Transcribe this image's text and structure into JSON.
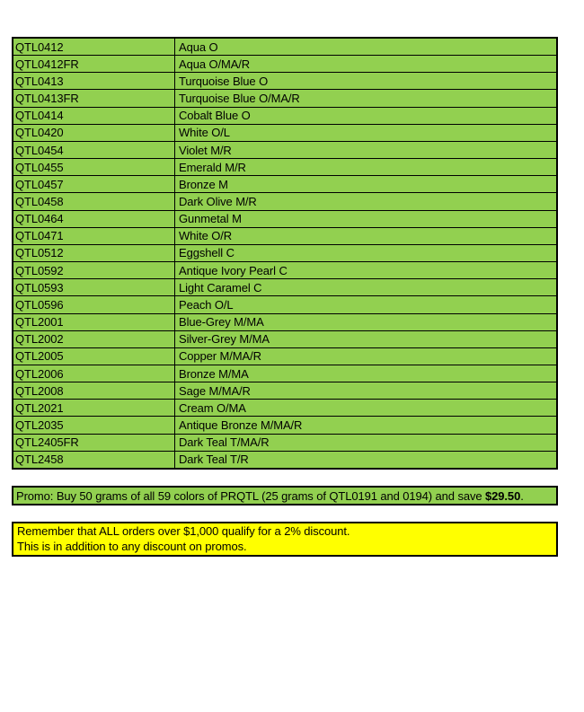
{
  "colors": {
    "page_background": "#FFFFFF",
    "table_fill": "#92D050",
    "promo_fill": "#92D050",
    "note_fill": "#FFFF00",
    "border": "#000000",
    "text": "#000000"
  },
  "table": {
    "rows": [
      {
        "code": "QTL0412",
        "description": "Aqua O"
      },
      {
        "code": "QTL0412FR",
        "description": "Aqua O/MA/R"
      },
      {
        "code": "QTL0413",
        "description": "Turquoise Blue O"
      },
      {
        "code": "QTL0413FR",
        "description": "Turquoise Blue O/MA/R"
      },
      {
        "code": "QTL0414",
        "description": "Cobalt Blue O"
      },
      {
        "code": "QTL0420",
        "description": "White O/L"
      },
      {
        "code": "QTL0454",
        "description": "Violet M/R"
      },
      {
        "code": "QTL0455",
        "description": "Emerald M/R"
      },
      {
        "code": "QTL0457",
        "description": "Bronze M"
      },
      {
        "code": "QTL0458",
        "description": "Dark Olive M/R"
      },
      {
        "code": "QTL0464",
        "description": "Gunmetal M"
      },
      {
        "code": "QTL0471",
        "description": "White O/R"
      },
      {
        "code": "QTL0512",
        "description": "Eggshell C"
      },
      {
        "code": "QTL0592",
        "description": "Antique Ivory Pearl C"
      },
      {
        "code": "QTL0593",
        "description": "Light Caramel C"
      },
      {
        "code": "QTL0596",
        "description": "Peach O/L"
      },
      {
        "code": "QTL2001",
        "description": "Blue-Grey M/MA"
      },
      {
        "code": "QTL2002",
        "description": "Silver-Grey M/MA"
      },
      {
        "code": "QTL2005",
        "description": "Copper M/MA/R"
      },
      {
        "code": "QTL2006",
        "description": "Bronze M/MA"
      },
      {
        "code": "QTL2008",
        "description": "Sage M/MA/R"
      },
      {
        "code": "QTL2021",
        "description": "Cream O/MA"
      },
      {
        "code": "QTL2035",
        "description": "Antique Bronze M/MA/R"
      },
      {
        "code": "QTL2405FR",
        "description": "Dark Teal T/MA/R"
      },
      {
        "code": "QTL2458",
        "description": "Dark Teal T/R"
      }
    ]
  },
  "promo": {
    "prefix": "Promo: Buy 50 grams of all 59 colors of PRQTL (25 grams of QTL0191 and 0194) and save ",
    "amount": "$29.50",
    "suffix": "."
  },
  "note": {
    "lines": [
      "Remember that ALL orders over $1,000 qualify for a 2% discount.",
      "This is in addition to any discount on promos."
    ]
  }
}
